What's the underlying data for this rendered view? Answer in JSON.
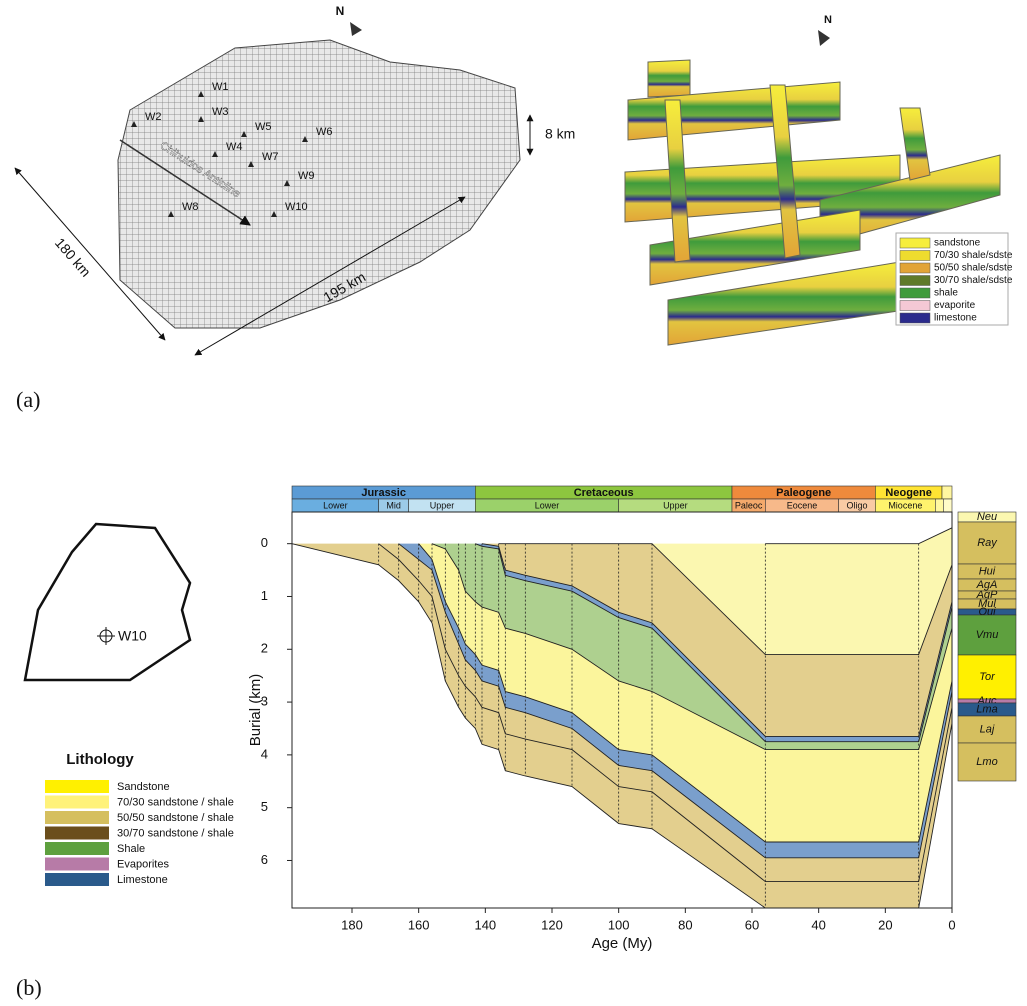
{
  "panel_a": {
    "label": "(a)",
    "model": {
      "north": "N",
      "wells": [
        "W1",
        "W2",
        "W3",
        "W4",
        "W5",
        "W6",
        "W7",
        "W8",
        "W9",
        "W10"
      ],
      "anticline": "Chihuidos Anticline",
      "height": "8 km",
      "width": "180 km",
      "length": "195 km"
    },
    "fence": {
      "north": "N",
      "legend": [
        {
          "name": "sandstone",
          "color": "#f6ee3c"
        },
        {
          "name": "70/30 shale/sdste",
          "color": "#eedc2e"
        },
        {
          "name": "50/50 shale/sdste",
          "color": "#e2a437"
        },
        {
          "name": "30/70 shale/sdste",
          "color": "#5f7a2a"
        },
        {
          "name": "shale",
          "color": "#3f9b3c"
        },
        {
          "name": "evaporite",
          "color": "#f4c8d5"
        },
        {
          "name": "limestone",
          "color": "#2b2b8c"
        }
      ]
    }
  },
  "panel_b": {
    "label": "(b)",
    "location": {
      "well": "W10"
    },
    "lithology": {
      "title": "Lithology",
      "items": [
        {
          "name": "Sandstone",
          "color": "#fff000"
        },
        {
          "name": "70/30 sandstone / shale",
          "color": "#fff27a"
        },
        {
          "name": "50/50 sandstone / shale",
          "color": "#d5bf5f"
        },
        {
          "name": "30/70 sandstone / shale",
          "color": "#6b4e1c"
        },
        {
          "name": "Shale",
          "color": "#5ea03e"
        },
        {
          "name": "Evaporites",
          "color": "#b77ba7"
        },
        {
          "name": "Limestone",
          "color": "#2a5a8b"
        }
      ]
    }
  },
  "chart_data": {
    "type": "burial",
    "xlabel": "Age (My)",
    "ylabel": "Burial (km)",
    "xlim": [
      198,
      0
    ],
    "xticks": [
      180,
      160,
      140,
      120,
      100,
      80,
      60,
      40,
      20,
      0
    ],
    "ylim": [
      -0.6,
      6.9
    ],
    "yticks": [
      0,
      1,
      2,
      3,
      4,
      5,
      6
    ],
    "periods": [
      {
        "name": "Jurassic",
        "start": 198,
        "end": 143,
        "color": "#5b9bd5"
      },
      {
        "name": "Cretaceous",
        "start": 143,
        "end": 66,
        "color": "#8dc63f"
      },
      {
        "name": "Paleogene",
        "start": 66,
        "end": 23,
        "color": "#ef8a3c"
      },
      {
        "name": "Neogene",
        "start": 23,
        "end": 3,
        "color": "#ffe433"
      },
      {
        "name": null,
        "start": 3,
        "end": 0,
        "color": "#fff6a0"
      }
    ],
    "epochs": [
      {
        "name": "Lower",
        "start": 198,
        "end": 172,
        "color": "#6aaee0"
      },
      {
        "name": "Mid",
        "start": 172,
        "end": 163,
        "color": "#9ccbe8"
      },
      {
        "name": "Upper",
        "start": 163,
        "end": 143,
        "color": "#c2e2f2"
      },
      {
        "name": "Lower",
        "start": 143,
        "end": 100,
        "color": "#9bd16a"
      },
      {
        "name": "Upper",
        "start": 100,
        "end": 66,
        "color": "#b5dc7f"
      },
      {
        "name": "Paleoc",
        "start": 66,
        "end": 56,
        "color": "#f4a96b"
      },
      {
        "name": "Eocene",
        "start": 56,
        "end": 34,
        "color": "#f7b98a"
      },
      {
        "name": "Oligo",
        "start": 34,
        "end": 23,
        "color": "#f9cba4"
      },
      {
        "name": "Miocene",
        "start": 23,
        "end": 5,
        "color": "#fff36d"
      },
      {
        "name": null,
        "start": 5,
        "end": 2.6,
        "color": "#fff8a0"
      },
      {
        "name": null,
        "start": 2.6,
        "end": 0,
        "color": "#fffbc8"
      }
    ],
    "x": [
      198,
      172,
      166,
      160,
      156,
      152,
      148,
      146,
      143,
      141,
      136,
      134,
      128,
      114,
      100,
      90,
      56,
      10,
      0
    ],
    "base": {
      "values": [
        0,
        0.4,
        0.7,
        1.1,
        1.5,
        2.6,
        3.1,
        3.3,
        3.5,
        3.8,
        3.9,
        4.3,
        4.4,
        4.6,
        5.3,
        5.4,
        6.9,
        6.9,
        3.4
      ]
    },
    "series": [
      {
        "color": "#e3cf8e",
        "values": [
          null,
          0,
          0.3,
          0.7,
          1.0,
          2.0,
          2.5,
          2.7,
          2.9,
          3.1,
          3.2,
          3.6,
          3.7,
          3.9,
          4.6,
          4.7,
          6.4,
          6.4,
          3.1
        ]
      },
      {
        "color": "#e3cf8e",
        "values": [
          null,
          null,
          0,
          0.3,
          0.5,
          1.3,
          1.9,
          2.2,
          2.4,
          2.6,
          2.7,
          3.1,
          3.2,
          3.5,
          4.2,
          4.3,
          5.95,
          5.95,
          2.8
        ]
      },
      {
        "color": "#7a9fcc",
        "values": [
          null,
          null,
          null,
          0,
          0.3,
          1.1,
          1.6,
          1.9,
          2.1,
          2.3,
          2.4,
          2.8,
          2.9,
          3.2,
          3.9,
          4.0,
          5.65,
          5.65,
          2.6
        ]
      },
      {
        "color": "#fbf59c",
        "values": [
          null,
          null,
          null,
          null,
          0,
          0.1,
          0.5,
          0.9,
          1.1,
          1.2,
          1.3,
          1.6,
          1.7,
          2.0,
          2.6,
          2.8,
          3.9,
          3.9,
          1.6
        ]
      },
      {
        "color": "#aed08f",
        "values": [
          null,
          null,
          null,
          null,
          null,
          null,
          null,
          null,
          0,
          0.05,
          0.1,
          0.6,
          0.7,
          0.9,
          1.4,
          1.6,
          3.75,
          3.75,
          1.2
        ]
      },
      {
        "color": "#7a9fcc",
        "values": [
          null,
          null,
          null,
          null,
          null,
          null,
          null,
          null,
          null,
          0,
          0.05,
          0.5,
          0.6,
          0.8,
          1.3,
          1.5,
          3.65,
          3.65,
          1.1
        ]
      },
      {
        "color": "#e3cf8e",
        "values": [
          null,
          null,
          null,
          null,
          null,
          null,
          null,
          null,
          null,
          null,
          0,
          0,
          0,
          0,
          0,
          0,
          2.1,
          2.1,
          0.4
        ]
      },
      {
        "color": "#fbf7b0",
        "values": [
          null,
          null,
          null,
          null,
          null,
          null,
          null,
          null,
          null,
          null,
          null,
          null,
          null,
          null,
          null,
          null,
          0,
          0,
          -0.3
        ]
      }
    ],
    "column": [
      {
        "name": "Neu",
        "color": "#fbf7b0"
      },
      {
        "name": "Ray",
        "color": "#d5bf5f"
      },
      {
        "name": "Hui",
        "color": "#d5bf5f"
      },
      {
        "name": "AgA",
        "color": "#d5bf5f"
      },
      {
        "name": "AgP",
        "color": "#d5bf5f"
      },
      {
        "name": "Mul",
        "color": "#d5bf5f"
      },
      {
        "name": "Qui",
        "color": "#2a5a8b"
      },
      {
        "name": "Vmu",
        "color": "#5ea03e"
      },
      {
        "name": "Tor",
        "color": "#fff000"
      },
      {
        "name": "Auc",
        "color": "#b77ba7"
      },
      {
        "name": "Lma",
        "color": "#2a5a8b"
      },
      {
        "name": "Laj",
        "color": "#d5bf5f"
      },
      {
        "name": "Lmo",
        "color": "#d5bf5f"
      }
    ]
  }
}
